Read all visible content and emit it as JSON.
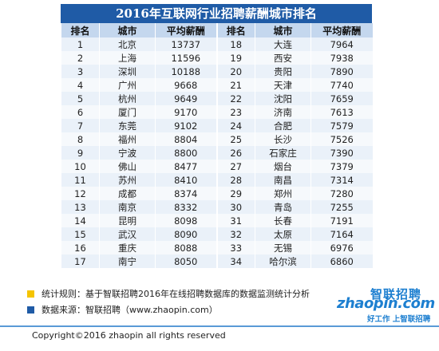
{
  "title": "2016年互联网行业招聘薪酬城市排名",
  "colors": {
    "title_bg": "#1f5ba6",
    "header_bg": "#c4d7ee",
    "row_odd": "#eaf1f9",
    "row_even": "#f6f9fc",
    "bullet_yellow": "#f5c400",
    "bullet_blue": "#1f5ba6",
    "logo_blue": "#1d7fd0",
    "separator": "#5a9ad6"
  },
  "table": {
    "headers": [
      "排名",
      "城市",
      "平均薪酬",
      "排名",
      "城市",
      "平均薪酬"
    ],
    "left_rows": [
      {
        "rank": "1",
        "city": "北京",
        "salary": "13737"
      },
      {
        "rank": "2",
        "city": "上海",
        "salary": "11596"
      },
      {
        "rank": "3",
        "city": "深圳",
        "salary": "10188"
      },
      {
        "rank": "4",
        "city": "广州",
        "salary": "9668"
      },
      {
        "rank": "5",
        "city": "杭州",
        "salary": "9649"
      },
      {
        "rank": "6",
        "city": "厦门",
        "salary": "9170"
      },
      {
        "rank": "7",
        "city": "东莞",
        "salary": "9102"
      },
      {
        "rank": "8",
        "city": "福州",
        "salary": "8804"
      },
      {
        "rank": "9",
        "city": "宁波",
        "salary": "8800"
      },
      {
        "rank": "10",
        "city": "佛山",
        "salary": "8477"
      },
      {
        "rank": "11",
        "city": "苏州",
        "salary": "8410"
      },
      {
        "rank": "12",
        "city": "成都",
        "salary": "8374"
      },
      {
        "rank": "13",
        "city": "南京",
        "salary": "8332"
      },
      {
        "rank": "14",
        "city": "昆明",
        "salary": "8098"
      },
      {
        "rank": "15",
        "city": "武汉",
        "salary": "8090"
      },
      {
        "rank": "16",
        "city": "重庆",
        "salary": "8088"
      },
      {
        "rank": "17",
        "city": "南宁",
        "salary": "8050"
      }
    ],
    "right_rows": [
      {
        "rank": "18",
        "city": "大连",
        "salary": "7964"
      },
      {
        "rank": "19",
        "city": "西安",
        "salary": "7938"
      },
      {
        "rank": "20",
        "city": "贵阳",
        "salary": "7890"
      },
      {
        "rank": "21",
        "city": "天津",
        "salary": "7740"
      },
      {
        "rank": "22",
        "city": "沈阳",
        "salary": "7659"
      },
      {
        "rank": "23",
        "city": "济南",
        "salary": "7613"
      },
      {
        "rank": "24",
        "city": "合肥",
        "salary": "7579"
      },
      {
        "rank": "25",
        "city": "长沙",
        "salary": "7526"
      },
      {
        "rank": "26",
        "city": "石家庄",
        "salary": "7390"
      },
      {
        "rank": "27",
        "city": "烟台",
        "salary": "7379"
      },
      {
        "rank": "28",
        "city": "南昌",
        "salary": "7314"
      },
      {
        "rank": "29",
        "city": "郑州",
        "salary": "7280"
      },
      {
        "rank": "30",
        "city": "青岛",
        "salary": "7255"
      },
      {
        "rank": "31",
        "city": "长春",
        "salary": "7191"
      },
      {
        "rank": "32",
        "city": "太原",
        "salary": "7164"
      },
      {
        "rank": "33",
        "city": "无锡",
        "salary": "6976"
      },
      {
        "rank": "34",
        "city": "哈尔滨",
        "salary": "6860"
      }
    ]
  },
  "notes": {
    "rule": "统计规则：基于智联招聘2016年在线招聘数据库的数据监测统计分析",
    "source": "数据来源：智联招聘（www.zhaopin.com）"
  },
  "logo": {
    "cn": "智联招聘",
    "en": "zhaopin.com",
    "tagline": "好工作  上智联招聘"
  },
  "copyright": "Copyright©2016 zhaopin all rights reserved"
}
